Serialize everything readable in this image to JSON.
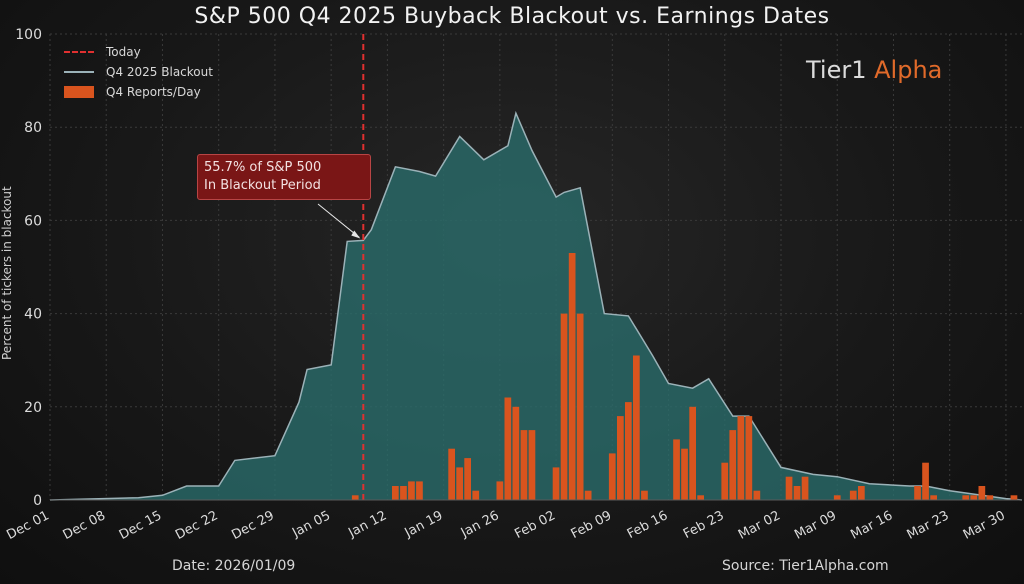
{
  "title": "S&P 500 Q4 2025 Buyback Blackout vs. Earnings Dates",
  "brand": {
    "part1": "Tier1 ",
    "part2": "Alpha"
  },
  "annotation": {
    "line1": "55.7% of S&P 500",
    "line2": "In Blackout Period"
  },
  "footer": {
    "date": "Date: 2026/01/09",
    "source": "Source: Tier1Alpha.com"
  },
  "colors": {
    "area": "#2a6e6d",
    "area_line": "#9bb2b8",
    "bars": "#d9541e",
    "today": "#e03030",
    "brand_accent": "#e06a2a"
  },
  "chart_data": {
    "type": "bar",
    "title": "S&P 500 Q4 2025 Buyback Blackout vs. Earnings Dates",
    "ylabel": "Percent of tickers in blackout",
    "xlabel": "",
    "ylim": [
      0,
      100
    ],
    "yticks": [
      0,
      20,
      40,
      60,
      80,
      100
    ],
    "x_start": "2025-12-01",
    "x_end": "2026-04-01",
    "xticks": [
      {
        "label": "Dec 01",
        "date": "2025-12-01"
      },
      {
        "label": "Dec 08",
        "date": "2025-12-08"
      },
      {
        "label": "Dec 15",
        "date": "2025-12-15"
      },
      {
        "label": "Dec 22",
        "date": "2025-12-22"
      },
      {
        "label": "Dec 29",
        "date": "2025-12-29"
      },
      {
        "label": "Jan 05",
        "date": "2026-01-05"
      },
      {
        "label": "Jan 12",
        "date": "2026-01-12"
      },
      {
        "label": "Jan 19",
        "date": "2026-01-19"
      },
      {
        "label": "Jan 26",
        "date": "2026-01-26"
      },
      {
        "label": "Feb 02",
        "date": "2026-02-02"
      },
      {
        "label": "Feb 09",
        "date": "2026-02-09"
      },
      {
        "label": "Feb 16",
        "date": "2026-02-16"
      },
      {
        "label": "Feb 23",
        "date": "2026-02-23"
      },
      {
        "label": "Mar 02",
        "date": "2026-03-02"
      },
      {
        "label": "Mar 09",
        "date": "2026-03-09"
      },
      {
        "label": "Mar 16",
        "date": "2026-03-16"
      },
      {
        "label": "Mar 23",
        "date": "2026-03-23"
      },
      {
        "label": "Mar 30",
        "date": "2026-03-30"
      }
    ],
    "today": "2026-01-09",
    "today_value": 55.7,
    "legend": {
      "position": "top-left",
      "today": "Today",
      "blackout": "Q4 2025 Blackout",
      "reports": "Q4 Reports/Day"
    },
    "blackout_series": {
      "name": "Q4 2025 Blackout",
      "points": [
        [
          "2025-12-01",
          0
        ],
        [
          "2025-12-12",
          0.5
        ],
        [
          "2025-12-15",
          1
        ],
        [
          "2025-12-18",
          3
        ],
        [
          "2025-12-22",
          3
        ],
        [
          "2025-12-24",
          8.5
        ],
        [
          "2025-12-29",
          9.5
        ],
        [
          "2026-01-01",
          21
        ],
        [
          "2026-01-02",
          28
        ],
        [
          "2026-01-05",
          29
        ],
        [
          "2026-01-07",
          55.5
        ],
        [
          "2026-01-09",
          55.7
        ],
        [
          "2026-01-10",
          58
        ],
        [
          "2026-01-13",
          71.5
        ],
        [
          "2026-01-16",
          70.5
        ],
        [
          "2026-01-18",
          69.5
        ],
        [
          "2026-01-21",
          78
        ],
        [
          "2026-01-24",
          73
        ],
        [
          "2026-01-27",
          76
        ],
        [
          "2026-01-28",
          83
        ],
        [
          "2026-01-30",
          75
        ],
        [
          "2026-02-02",
          65
        ],
        [
          "2026-02-03",
          66
        ],
        [
          "2026-02-05",
          67
        ],
        [
          "2026-02-08",
          40
        ],
        [
          "2026-02-11",
          39.5
        ],
        [
          "2026-02-14",
          31
        ],
        [
          "2026-02-16",
          25
        ],
        [
          "2026-02-19",
          24
        ],
        [
          "2026-02-21",
          26
        ],
        [
          "2026-02-24",
          18
        ],
        [
          "2026-02-26",
          18
        ],
        [
          "2026-03-02",
          7
        ],
        [
          "2026-03-06",
          5.5
        ],
        [
          "2026-03-09",
          5
        ],
        [
          "2026-03-13",
          3.5
        ],
        [
          "2026-03-18",
          3
        ],
        [
          "2026-03-20",
          3
        ],
        [
          "2026-03-23",
          2
        ],
        [
          "2026-03-27",
          1
        ],
        [
          "2026-03-30",
          0.3
        ],
        [
          "2026-04-01",
          0
        ]
      ]
    },
    "reports_series": {
      "name": "Q4 Reports/Day",
      "values": [
        [
          "2026-01-08",
          1
        ],
        [
          "2026-01-13",
          3
        ],
        [
          "2026-01-14",
          3
        ],
        [
          "2026-01-15",
          4
        ],
        [
          "2026-01-16",
          4
        ],
        [
          "2026-01-20",
          11
        ],
        [
          "2026-01-21",
          7
        ],
        [
          "2026-01-22",
          9
        ],
        [
          "2026-01-23",
          2
        ],
        [
          "2026-01-26",
          4
        ],
        [
          "2026-01-27",
          22
        ],
        [
          "2026-01-28",
          20
        ],
        [
          "2026-01-29",
          15
        ],
        [
          "2026-01-30",
          15
        ],
        [
          "2026-02-02",
          7
        ],
        [
          "2026-02-03",
          40
        ],
        [
          "2026-02-04",
          53
        ],
        [
          "2026-02-05",
          40
        ],
        [
          "2026-02-06",
          2
        ],
        [
          "2026-02-09",
          10
        ],
        [
          "2026-02-10",
          18
        ],
        [
          "2026-02-11",
          21
        ],
        [
          "2026-02-12",
          31
        ],
        [
          "2026-02-13",
          2
        ],
        [
          "2026-02-17",
          13
        ],
        [
          "2026-02-18",
          11
        ],
        [
          "2026-02-19",
          20
        ],
        [
          "2026-02-20",
          1
        ],
        [
          "2026-02-23",
          8
        ],
        [
          "2026-02-24",
          15
        ],
        [
          "2026-02-25",
          18
        ],
        [
          "2026-02-26",
          18
        ],
        [
          "2026-02-27",
          2
        ],
        [
          "2026-03-03",
          5
        ],
        [
          "2026-03-04",
          3
        ],
        [
          "2026-03-05",
          5
        ],
        [
          "2026-03-09",
          1
        ],
        [
          "2026-03-11",
          2
        ],
        [
          "2026-03-12",
          3
        ],
        [
          "2026-03-19",
          3
        ],
        [
          "2026-03-20",
          8
        ],
        [
          "2026-03-21",
          1
        ],
        [
          "2026-03-25",
          1
        ],
        [
          "2026-03-26",
          1
        ],
        [
          "2026-03-27",
          3
        ],
        [
          "2026-03-28",
          1
        ],
        [
          "2026-03-31",
          1
        ]
      ]
    },
    "grid": true
  }
}
